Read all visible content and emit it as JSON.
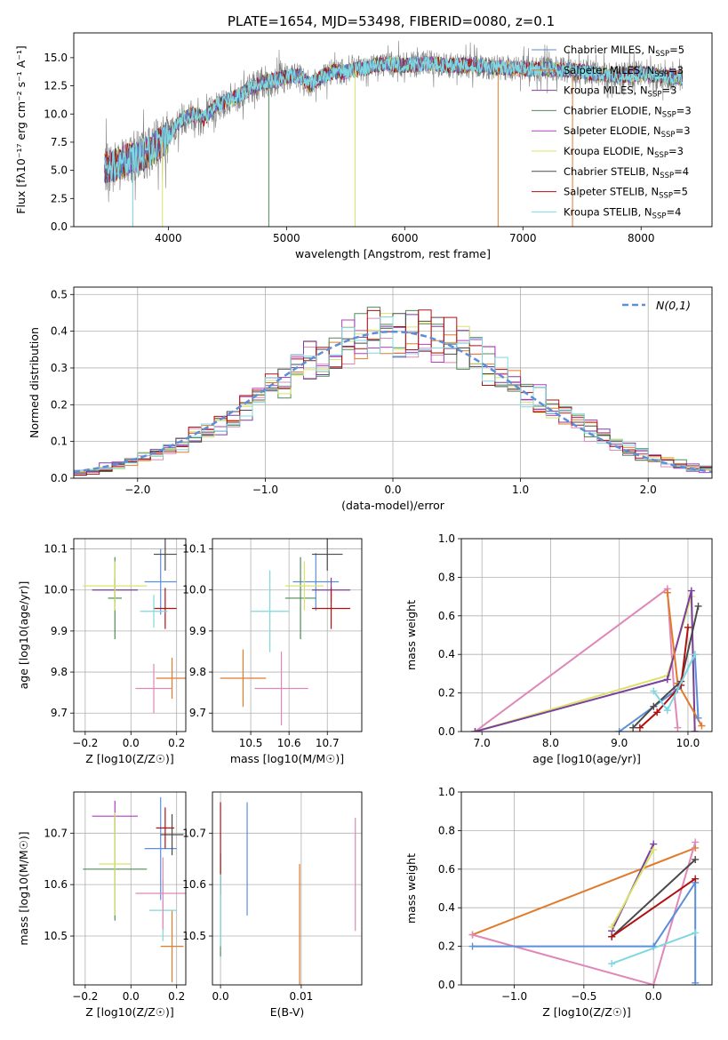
{
  "title": "PLATE=1654, MJD=53498, FIBERID=0080, z=0.1",
  "series_colors": [
    "#5b8fd9",
    "#e07b2c",
    "#7b3f9e",
    "#4e8b57",
    "#b23ec2",
    "#d9e36a",
    "#4a4a4a",
    "#b01010",
    "#7fd8df",
    "#e087b8"
  ],
  "legend_spec": [
    {
      "label": "Chabrier MILES, N",
      "sub": "SSP",
      "suffix": "=5"
    },
    {
      "label": "Salpeter MILES, N",
      "sub": "SSP",
      "suffix": "=3"
    },
    {
      "label": "Kroupa MILES, N",
      "sub": "SSP",
      "suffix": "=3"
    },
    {
      "label": "Chabrier ELODIE, N",
      "sub": "SSP",
      "suffix": "=3"
    },
    {
      "label": "Salpeter ELODIE, N",
      "sub": "SSP",
      "suffix": "=3"
    },
    {
      "label": "Kroupa ELODIE, N",
      "sub": "SSP",
      "suffix": "=3"
    },
    {
      "label": "Chabrier STELIB, N",
      "sub": "SSP",
      "suffix": "=4"
    },
    {
      "label": "Salpeter STELIB, N",
      "sub": "SSP",
      "suffix": "=5"
    },
    {
      "label": "Kroupa STELIB, N",
      "sub": "SSP",
      "suffix": "=4"
    }
  ],
  "chart_data": [
    {
      "type": "line",
      "xlabel": "wavelength [Angstrom, rest frame]",
      "ylabel": "Flux [fλ10⁻¹⁷ erg cm⁻² s⁻¹ A⁻¹]",
      "xlim": [
        3200,
        8600
      ],
      "ylim": [
        0,
        17.2
      ],
      "xticks": [
        4000,
        5000,
        6000,
        7000,
        8000
      ],
      "yticks": [
        0.0,
        2.5,
        5.0,
        7.5,
        10.0,
        12.5,
        15.0
      ],
      "spectrum_anchor": {
        "x": [
          3460,
          3600,
          3700,
          3800,
          3900,
          4000,
          4100,
          4200,
          4300,
          4400,
          4500,
          4600,
          4700,
          4800,
          4900,
          5000,
          5100,
          5200,
          5300,
          5400,
          5500,
          5600,
          5700,
          5800,
          5900,
          6000,
          6200,
          6400,
          6600,
          6800,
          7000,
          7200,
          7400,
          7600,
          7800,
          8000,
          8200,
          8350
        ],
        "y": [
          5.2,
          5.6,
          6.2,
          6.4,
          7.2,
          8.0,
          9.4,
          10.0,
          9.6,
          10.7,
          11.2,
          11.6,
          12.3,
          12.8,
          13.0,
          13.3,
          13.4,
          12.6,
          13.3,
          13.8,
          13.7,
          14.0,
          14.1,
          14.5,
          14.4,
          14.3,
          14.5,
          14.3,
          14.3,
          14.1,
          14.0,
          14.0,
          13.9,
          13.6,
          13.4,
          13.6,
          13.3,
          13.2
        ]
      },
      "notes": "model spectra for nine SSP fits over observed spectrum"
    },
    {
      "type": "line",
      "xlabel": "(data-model)/error",
      "ylabel": "Normed distribution",
      "xlim": [
        -2.5,
        2.5
      ],
      "ylim": [
        0,
        0.52
      ],
      "xticks": [
        -2,
        -1,
        0,
        1,
        2
      ],
      "yticks": [
        0.0,
        0.1,
        0.2,
        0.3,
        0.4,
        0.5
      ],
      "legend": "N(0,1)",
      "histogram_bin_width": 0.1
    },
    {
      "type": "scatter",
      "xlabel": "Z [log10(Z/Z☉)]",
      "ylabel": "age  [log10(age/yr)]",
      "xlim": [
        -0.25,
        0.24
      ],
      "ylim": [
        9.655,
        10.125
      ],
      "xticks": [
        -0.2,
        0.0,
        0.2
      ],
      "yticks": [
        9.7,
        9.8,
        9.9,
        10.0,
        10.1
      ],
      "points": [
        {
          "c": 0,
          "x": 0.13,
          "y": 10.02,
          "ex": 0.07,
          "ey": 0.08
        },
        {
          "c": 1,
          "x": 0.18,
          "y": 9.785,
          "ex": 0.07,
          "ey": 0.05
        },
        {
          "c": 2,
          "x": -0.07,
          "y": 10.0,
          "ex": 0.1,
          "ey": 0.03
        },
        {
          "c": 3,
          "x": -0.07,
          "y": 9.98,
          "ex": 0.03,
          "ey": 0.1
        },
        {
          "c": 5,
          "x": -0.07,
          "y": 10.01,
          "ex": 0.14,
          "ey": 0.06
        },
        {
          "c": 6,
          "x": 0.15,
          "y": 10.087,
          "ex": 0.05,
          "ey": 0.04
        },
        {
          "c": 7,
          "x": 0.15,
          "y": 9.955,
          "ex": 0.05,
          "ey": 0.05
        },
        {
          "c": 8,
          "x": 0.1,
          "y": 9.948,
          "ex": 0.06,
          "ey": 0.04
        },
        {
          "c": 9,
          "x": 0.1,
          "y": 9.76,
          "ex": 0.08,
          "ey": 0.06
        }
      ]
    },
    {
      "type": "scatter",
      "xlabel": "mass [log10(M/M☉)]",
      "ylabel": "",
      "xlim": [
        10.4,
        10.79
      ],
      "ylim": [
        9.655,
        10.125
      ],
      "xticks": [
        10.5,
        10.6,
        10.7
      ],
      "yticks": [
        9.7,
        9.8,
        9.9,
        10.0,
        10.1
      ],
      "points": [
        {
          "c": 0,
          "x": 10.67,
          "y": 10.02,
          "ex": 0.06,
          "ey": 0.07
        },
        {
          "c": 1,
          "x": 10.48,
          "y": 9.785,
          "ex": 0.06,
          "ey": 0.07
        },
        {
          "c": 2,
          "x": 10.71,
          "y": 10.0,
          "ex": 0.05,
          "ey": 0.03
        },
        {
          "c": 3,
          "x": 10.63,
          "y": 9.98,
          "ex": 0.04,
          "ey": 0.1
        },
        {
          "c": 5,
          "x": 10.64,
          "y": 10.01,
          "ex": 0.05,
          "ey": 0.06
        },
        {
          "c": 6,
          "x": 10.7,
          "y": 10.087,
          "ex": 0.04,
          "ey": 0.04
        },
        {
          "c": 7,
          "x": 10.71,
          "y": 9.955,
          "ex": 0.05,
          "ey": 0.05
        },
        {
          "c": 8,
          "x": 10.55,
          "y": 9.948,
          "ex": 0.05,
          "ey": 0.1
        },
        {
          "c": 9,
          "x": 10.58,
          "y": 9.76,
          "ex": 0.07,
          "ey": 0.09
        }
      ]
    },
    {
      "type": "line",
      "xlabel": "age  [log10(age/yr)]",
      "ylabel": "mass weight",
      "xlim": [
        6.7,
        10.35
      ],
      "ylim": [
        0,
        1.0
      ],
      "xticks": [
        7,
        8,
        9,
        10
      ],
      "yticks": [
        0.0,
        0.2,
        0.4,
        0.6,
        0.8,
        1.0
      ],
      "series": [
        {
          "c": 9,
          "x": [
            6.9,
            9.7,
            9.8,
            9.85
          ],
          "y": [
            0.0,
            0.74,
            0.2,
            0.02
          ]
        },
        {
          "c": 5,
          "x": [
            6.9,
            9.7,
            10.05,
            10.1
          ],
          "y": [
            0.0,
            0.29,
            0.7,
            0.0
          ]
        },
        {
          "c": 2,
          "x": [
            6.9,
            9.7,
            10.05,
            10.1
          ],
          "y": [
            0.0,
            0.27,
            0.73,
            0.0
          ]
        },
        {
          "c": 1,
          "x": [
            9.7,
            9.85,
            10.2
          ],
          "y": [
            0.72,
            0.25,
            0.03
          ]
        },
        {
          "c": 0,
          "x": [
            9.0,
            9.85,
            10.1,
            10.15
          ],
          "y": [
            0.0,
            0.22,
            0.4,
            0.07
          ]
        },
        {
          "c": 6,
          "x": [
            9.2,
            9.5,
            9.9,
            10.15
          ],
          "y": [
            0.02,
            0.13,
            0.26,
            0.65
          ]
        },
        {
          "c": 7,
          "x": [
            9.3,
            9.55,
            9.9,
            10.0
          ],
          "y": [
            0.02,
            0.1,
            0.24,
            0.54
          ]
        },
        {
          "c": 8,
          "x": [
            9.5,
            9.7,
            10.1
          ],
          "y": [
            0.21,
            0.11,
            0.4
          ]
        }
      ]
    },
    {
      "type": "scatter",
      "xlabel": "Z [log10(Z/Z☉)]",
      "ylabel": "mass [log10(M/M☉)]",
      "xlim": [
        -0.25,
        0.24
      ],
      "ylim": [
        10.405,
        10.78
      ],
      "xticks": [
        -0.2,
        0.0,
        0.2
      ],
      "yticks": [
        10.5,
        10.6,
        10.7
      ],
      "points": [
        {
          "c": 0,
          "x": 0.13,
          "y": 10.67,
          "ex": 0.07,
          "ey": 0.1
        },
        {
          "c": 1,
          "x": 0.18,
          "y": 10.48,
          "ex": 0.05,
          "ey": 0.07
        },
        {
          "c": 4,
          "x": -0.07,
          "y": 10.733,
          "ex": 0.1,
          "ey": 0.03
        },
        {
          "c": 3,
          "x": -0.07,
          "y": 10.63,
          "ex": 0.14,
          "ey": 0.1
        },
        {
          "c": 5,
          "x": -0.07,
          "y": 10.64,
          "ex": 0.07,
          "ey": 0.1
        },
        {
          "c": 6,
          "x": 0.18,
          "y": 10.697,
          "ex": 0.05,
          "ey": 0.04
        },
        {
          "c": 7,
          "x": 0.15,
          "y": 10.71,
          "ex": 0.04,
          "ey": 0.04
        },
        {
          "c": 8,
          "x": 0.14,
          "y": 10.55,
          "ex": 0.06,
          "ey": 0.06
        },
        {
          "c": 9,
          "x": 0.14,
          "y": 10.583,
          "ex": 0.12,
          "ey": 0.07
        }
      ]
    },
    {
      "type": "scatter",
      "xlabel": "E(B-V)",
      "ylabel": "",
      "xlim": [
        -0.001,
        0.0175
      ],
      "ylim": [
        10.405,
        10.78
      ],
      "xticks": [
        0.0,
        0.01
      ],
      "yticks": [
        10.5,
        10.6,
        10.7
      ],
      "points": [
        {
          "c": 0,
          "x": 0.0033,
          "y": 10.65,
          "ey": 0.11
        },
        {
          "c": 1,
          "x": 0.0098,
          "y": 10.52,
          "ey": 0.12
        },
        {
          "c": 3,
          "x": 0.0,
          "y": 10.56,
          "ey": 0.1
        },
        {
          "c": 7,
          "x": 0.0,
          "y": 10.67,
          "ey": 0.09
        },
        {
          "c": 8,
          "x": 0.0,
          "y": 10.55,
          "ey": 0.07
        },
        {
          "c": 9,
          "x": 0.0167,
          "y": 10.62,
          "ey": 0.11
        }
      ]
    },
    {
      "type": "line",
      "xlabel": "Z [log10(Z/Z☉)]",
      "ylabel": "mass weight",
      "xlim": [
        -1.38,
        0.42
      ],
      "ylim": [
        0,
        1.0
      ],
      "xticks": [
        -1.0,
        -0.5,
        0.0
      ],
      "yticks": [
        0.0,
        0.2,
        0.4,
        0.6,
        0.8,
        1.0
      ],
      "series": [
        {
          "c": 1,
          "x": [
            -1.3,
            0.3
          ],
          "y": [
            0.26,
            0.71
          ]
        },
        {
          "c": 9,
          "x": [
            -1.3,
            0.0,
            0.3
          ],
          "y": [
            0.26,
            0.0,
            0.74
          ]
        },
        {
          "c": 0,
          "x": [
            -1.3,
            0.0,
            0.3,
            0.3
          ],
          "y": [
            0.2,
            0.2,
            0.53,
            0.01
          ]
        },
        {
          "c": 6,
          "x": [
            -0.3,
            0.3
          ],
          "y": [
            0.25,
            0.65
          ]
        },
        {
          "c": 7,
          "x": [
            -0.3,
            0.3
          ],
          "y": [
            0.25,
            0.55
          ]
        },
        {
          "c": 2,
          "x": [
            -0.3,
            0.0
          ],
          "y": [
            0.28,
            0.73
          ]
        },
        {
          "c": 5,
          "x": [
            -0.3,
            0.0
          ],
          "y": [
            0.3,
            0.7
          ]
        },
        {
          "c": 8,
          "x": [
            -0.3,
            0.3
          ],
          "y": [
            0.11,
            0.27
          ]
        }
      ]
    }
  ]
}
